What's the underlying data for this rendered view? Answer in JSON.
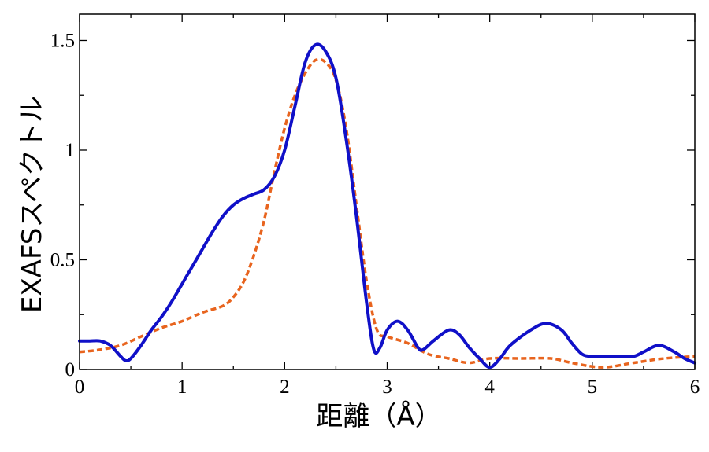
{
  "chart_data": {
    "type": "line",
    "title": "",
    "xlabel": "距離（Å）",
    "ylabel": "EXAFSスペクトル",
    "xlim": [
      0,
      6
    ],
    "ylim": [
      0,
      1.5
    ],
    "x_ticks": [
      0,
      1,
      2,
      3,
      4,
      5,
      6
    ],
    "x_tick_labels": [
      "0",
      "1",
      "2",
      "3",
      "4",
      "5",
      "6"
    ],
    "y_ticks": [
      0,
      0.5,
      1,
      1.5
    ],
    "y_tick_labels": [
      "0",
      "0.5",
      "1",
      "1.5"
    ],
    "grid": false,
    "legend": "none",
    "series": [
      {
        "style": "solid",
        "color": "#1010c8",
        "points": [
          [
            0.0,
            0.13
          ],
          [
            0.1,
            0.13
          ],
          [
            0.2,
            0.13
          ],
          [
            0.3,
            0.11
          ],
          [
            0.4,
            0.06
          ],
          [
            0.45,
            0.04
          ],
          [
            0.5,
            0.05
          ],
          [
            0.6,
            0.11
          ],
          [
            0.7,
            0.18
          ],
          [
            0.8,
            0.24
          ],
          [
            0.9,
            0.31
          ],
          [
            1.0,
            0.39
          ],
          [
            1.1,
            0.47
          ],
          [
            1.2,
            0.55
          ],
          [
            1.3,
            0.63
          ],
          [
            1.4,
            0.7
          ],
          [
            1.5,
            0.75
          ],
          [
            1.6,
            0.78
          ],
          [
            1.7,
            0.8
          ],
          [
            1.8,
            0.82
          ],
          [
            1.9,
            0.88
          ],
          [
            2.0,
            1.0
          ],
          [
            2.1,
            1.2
          ],
          [
            2.2,
            1.4
          ],
          [
            2.3,
            1.48
          ],
          [
            2.4,
            1.45
          ],
          [
            2.5,
            1.33
          ],
          [
            2.6,
            1.05
          ],
          [
            2.7,
            0.7
          ],
          [
            2.8,
            0.3
          ],
          [
            2.87,
            0.09
          ],
          [
            2.93,
            0.1
          ],
          [
            3.0,
            0.18
          ],
          [
            3.1,
            0.22
          ],
          [
            3.2,
            0.18
          ],
          [
            3.3,
            0.1
          ],
          [
            3.35,
            0.09
          ],
          [
            3.45,
            0.13
          ],
          [
            3.6,
            0.18
          ],
          [
            3.7,
            0.16
          ],
          [
            3.8,
            0.1
          ],
          [
            3.9,
            0.05
          ],
          [
            4.0,
            0.01
          ],
          [
            4.1,
            0.05
          ],
          [
            4.2,
            0.11
          ],
          [
            4.4,
            0.18
          ],
          [
            4.55,
            0.21
          ],
          [
            4.7,
            0.18
          ],
          [
            4.8,
            0.12
          ],
          [
            4.9,
            0.07
          ],
          [
            5.0,
            0.06
          ],
          [
            5.2,
            0.06
          ],
          [
            5.4,
            0.06
          ],
          [
            5.5,
            0.08
          ],
          [
            5.65,
            0.11
          ],
          [
            5.8,
            0.08
          ],
          [
            5.9,
            0.05
          ],
          [
            6.0,
            0.03
          ]
        ]
      },
      {
        "style": "dashed",
        "color": "#e8641e",
        "points": [
          [
            0.0,
            0.08
          ],
          [
            0.2,
            0.09
          ],
          [
            0.4,
            0.11
          ],
          [
            0.6,
            0.15
          ],
          [
            0.8,
            0.19
          ],
          [
            1.0,
            0.22
          ],
          [
            1.2,
            0.26
          ],
          [
            1.4,
            0.29
          ],
          [
            1.5,
            0.33
          ],
          [
            1.6,
            0.4
          ],
          [
            1.7,
            0.52
          ],
          [
            1.8,
            0.68
          ],
          [
            1.9,
            0.9
          ],
          [
            2.0,
            1.1
          ],
          [
            2.1,
            1.25
          ],
          [
            2.2,
            1.35
          ],
          [
            2.3,
            1.41
          ],
          [
            2.4,
            1.4
          ],
          [
            2.5,
            1.32
          ],
          [
            2.6,
            1.1
          ],
          [
            2.7,
            0.75
          ],
          [
            2.8,
            0.4
          ],
          [
            2.9,
            0.18
          ],
          [
            3.0,
            0.15
          ],
          [
            3.2,
            0.12
          ],
          [
            3.4,
            0.07
          ],
          [
            3.6,
            0.05
          ],
          [
            3.8,
            0.03
          ],
          [
            4.0,
            0.05
          ],
          [
            4.3,
            0.05
          ],
          [
            4.6,
            0.05
          ],
          [
            4.8,
            0.03
          ],
          [
            5.1,
            0.01
          ],
          [
            5.4,
            0.03
          ],
          [
            5.7,
            0.05
          ],
          [
            6.0,
            0.06
          ]
        ]
      }
    ]
  }
}
